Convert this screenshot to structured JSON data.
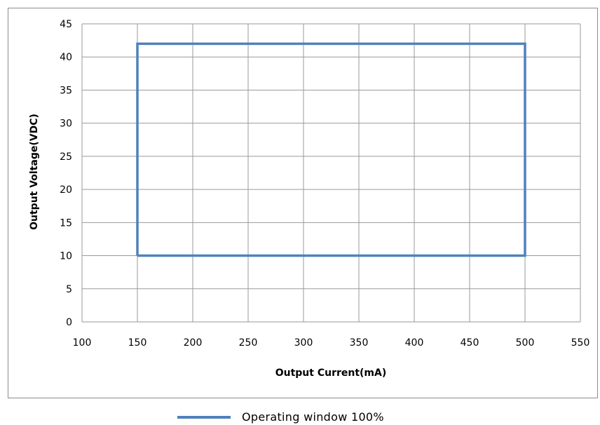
{
  "chart_data": {
    "type": "line",
    "title": "",
    "xlabel": "Output Current(mA)",
    "ylabel": "Output Voltage(VDC)",
    "xlim": [
      100,
      550
    ],
    "ylim": [
      0,
      45
    ],
    "x_ticks": [
      100,
      150,
      200,
      250,
      300,
      350,
      400,
      450,
      500,
      550
    ],
    "y_ticks": [
      0,
      5,
      10,
      15,
      20,
      25,
      30,
      35,
      40,
      45
    ],
    "grid": true,
    "legend_position": "bottom",
    "series": [
      {
        "name": "Operating window 100%",
        "color": "#4f81bd",
        "x": [
          150,
          150,
          500,
          500,
          150
        ],
        "y": [
          10,
          42,
          42,
          10,
          10
        ]
      }
    ]
  }
}
